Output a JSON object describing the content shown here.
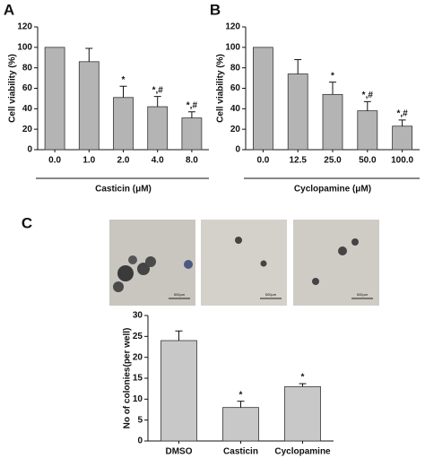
{
  "chart_data": [
    {
      "type": "bar",
      "panel": "A",
      "ylabel": "Cell viability (%)",
      "xlabel": "Casticin (μM)",
      "categories": [
        "0.0",
        "1.0",
        "2.0",
        "4.0",
        "8.0"
      ],
      "values": [
        100,
        86,
        51,
        42,
        31
      ],
      "errors": [
        0,
        13,
        11,
        10,
        6
      ],
      "annotations": [
        null,
        null,
        "*",
        "*,#",
        "*,#"
      ],
      "color": "#b4b4b4",
      "ylim": [
        0,
        120
      ],
      "yticks": [
        0,
        20,
        40,
        60,
        80,
        100,
        120
      ]
    },
    {
      "type": "bar",
      "panel": "B",
      "ylabel": "Cell viability (%)",
      "xlabel": "Cyclopamine (μM)",
      "categories": [
        "0.0",
        "12.5",
        "25.0",
        "50.0",
        "100.0"
      ],
      "values": [
        100,
        74,
        54,
        38,
        23
      ],
      "errors": [
        0,
        14,
        12,
        9,
        6
      ],
      "annotations": [
        null,
        null,
        "*",
        "*,#",
        "*,#"
      ],
      "color": "#b4b4b4",
      "ylim": [
        0,
        120
      ],
      "yticks": [
        0,
        20,
        40,
        60,
        80,
        100,
        120
      ]
    },
    {
      "type": "bar",
      "panel": "C",
      "ylabel": "No of colonies(per well)",
      "categories": [
        "DMSO",
        "Casticin",
        "Cyclopamine"
      ],
      "values": [
        24,
        8,
        13
      ],
      "errors": [
        2.3,
        1.5,
        0.7
      ],
      "annotations": [
        null,
        "*",
        "*"
      ],
      "color": "#c8c8c8",
      "ylim": [
        0,
        30
      ],
      "yticks": [
        0,
        5,
        10,
        15,
        20,
        25,
        30
      ]
    }
  ],
  "images": [
    {
      "scale_bar": "500μm"
    },
    {
      "scale_bar": "500μm"
    },
    {
      "scale_bar": "500μm"
    }
  ]
}
